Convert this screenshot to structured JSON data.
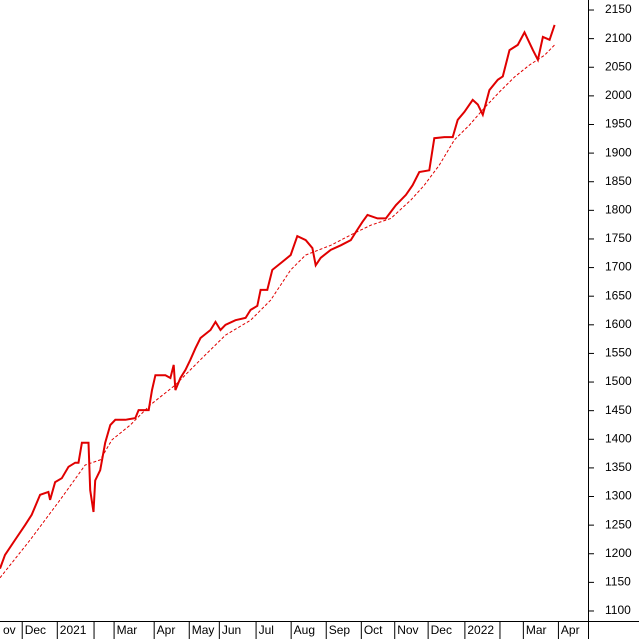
{
  "chart_data": {
    "type": "line",
    "xlim": [
      0,
      352
    ],
    "ylim": [
      1082.5,
      2167.5
    ],
    "yticks": [
      1100,
      1150,
      1200,
      1250,
      1300,
      1350,
      1400,
      1450,
      1500,
      1550,
      1600,
      1650,
      1700,
      1750,
      1800,
      1850,
      1900,
      1950,
      2000,
      2050,
      2100,
      2150
    ],
    "xticks": [
      {
        "value": 0,
        "label": "ov"
      },
      {
        "value": 13,
        "label": "Dec"
      },
      {
        "value": 34,
        "label": "2021"
      },
      {
        "value": 56,
        "label": null
      },
      {
        "value": 68,
        "label": "Mar"
      },
      {
        "value": 92,
        "label": "Apr"
      },
      {
        "value": 113,
        "label": "May"
      },
      {
        "value": 131,
        "label": "Jun"
      },
      {
        "value": 153,
        "label": "Jul"
      },
      {
        "value": 174,
        "label": "Aug"
      },
      {
        "value": 195,
        "label": "Sep"
      },
      {
        "value": 216,
        "label": "Oct"
      },
      {
        "value": 236,
        "label": "Nov"
      },
      {
        "value": 256,
        "label": "Dec"
      },
      {
        "value": 278,
        "label": "2022"
      },
      {
        "value": 299,
        "label": null
      },
      {
        "value": 313,
        "label": "Mar"
      },
      {
        "value": 334,
        "label": "Apr"
      }
    ],
    "series": [
      {
        "color": "#e00000",
        "style": "solid",
        "x": [
          0,
          3,
          9,
          15,
          19,
          24,
          29,
          30,
          33,
          37,
          41,
          45,
          47,
          49,
          53,
          54,
          56,
          57,
          60,
          63,
          66,
          69,
          75,
          81,
          83,
          89,
          91,
          93,
          99,
          102,
          104,
          105,
          108,
          111,
          114,
          117,
          120,
          126,
          129,
          132,
          135,
          141,
          147,
          150,
          154,
          156,
          160,
          163,
          169,
          174,
          178,
          183,
          187,
          189,
          192,
          198,
          204,
          210,
          213,
          217,
          220,
          226,
          231,
          237,
          243,
          247,
          251,
          257,
          260,
          266,
          271,
          274,
          278,
          283,
          286,
          289,
          293,
          298,
          301,
          305,
          310,
          314,
          319,
          322,
          325,
          329,
          332
        ],
        "values": [
          1174,
          1198,
          1224,
          1250,
          1268,
          1303,
          1308,
          1294,
          1325,
          1332,
          1352,
          1359,
          1359,
          1394,
          1394,
          1311,
          1273,
          1328,
          1346,
          1394,
          1425,
          1434,
          1434,
          1437,
          1451,
          1451,
          1486,
          1512,
          1512,
          1507,
          1530,
          1486,
          1507,
          1521,
          1539,
          1559,
          1577,
          1591,
          1605,
          1591,
          1600,
          1608,
          1612,
          1626,
          1633,
          1661,
          1661,
          1696,
          1710,
          1722,
          1755,
          1748,
          1734,
          1704,
          1717,
          1731,
          1739,
          1748,
          1762,
          1780,
          1792,
          1786,
          1786,
          1809,
          1827,
          1844,
          1867,
          1870,
          1926,
          1928,
          1928,
          1958,
          1972,
          1993,
          1985,
          1967,
          2010,
          2028,
          2034,
          2080,
          2089,
          2111,
          2080,
          2063,
          2103,
          2098,
          2124
        ]
      },
      {
        "color": "#e00000",
        "style": "dashed",
        "x": [
          0,
          18,
          36,
          51,
          60,
          67,
          78,
          90,
          105,
          120,
          135,
          150,
          162,
          174,
          183,
          198,
          210,
          222,
          234,
          246,
          254,
          263,
          272,
          281,
          290,
          299,
          308,
          317,
          326,
          332
        ],
        "values": [
          1158,
          1224,
          1294,
          1355,
          1364,
          1399,
          1425,
          1460,
          1495,
          1539,
          1582,
          1608,
          1643,
          1696,
          1722,
          1739,
          1757,
          1774,
          1786,
          1818,
          1844,
          1879,
          1923,
          1949,
          1979,
          2007,
          2033,
          2054,
          2071,
          2089
        ]
      }
    ]
  }
}
